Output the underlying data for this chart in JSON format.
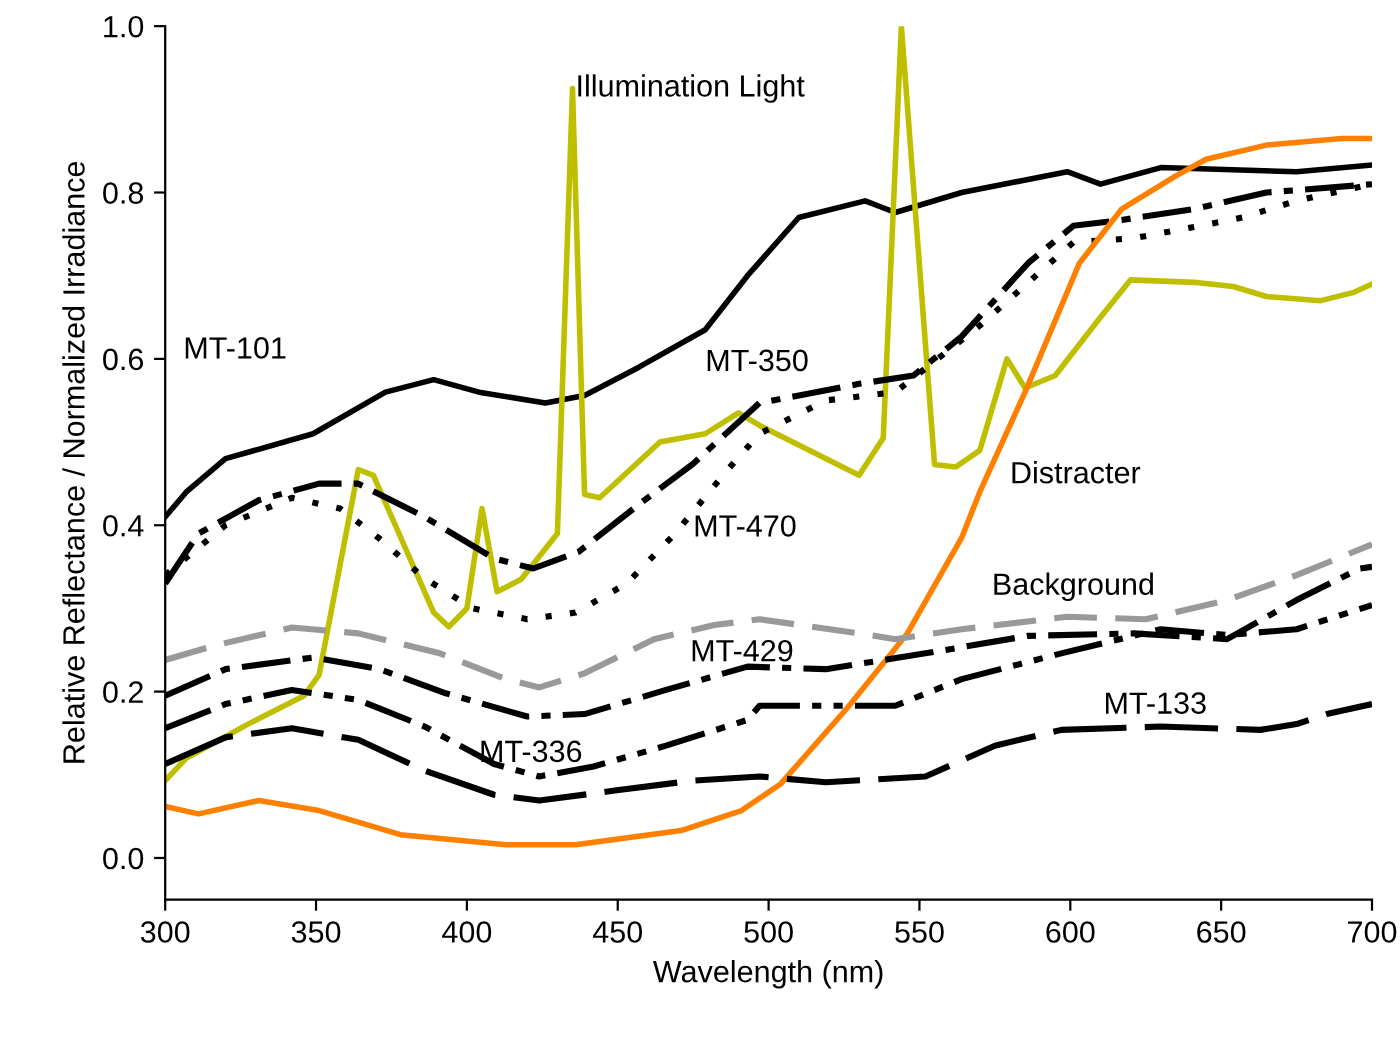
{
  "chart_data": {
    "type": "line",
    "xlabel": "Wavelength (nm)",
    "ylabel": "Relative Reflectance / Normalized Irradiance",
    "xlim": [
      300,
      700
    ],
    "xticks": [
      300,
      350,
      400,
      450,
      500,
      550,
      600,
      650,
      700
    ],
    "ylim": [
      -0.05,
      1.0
    ],
    "yticks": [
      {
        "value": 0,
        "label": "0.0"
      },
      {
        "value": 0.2,
        "label": "0.2"
      },
      {
        "value": 0.4,
        "label": "0.4"
      },
      {
        "value": 0.6,
        "label": "0.6"
      },
      {
        "value": 0.8,
        "label": "0.8"
      },
      {
        "value": 1,
        "label": "1.0"
      }
    ],
    "grid": false,
    "legend": false,
    "marker": "none",
    "series": [
      {
        "name": "MT-101",
        "color": "#000000",
        "line_style": "solid",
        "x": [
          300,
          307,
          320,
          349,
          373,
          389,
          404,
          426,
          439,
          457,
          479,
          493,
          510,
          532,
          542,
          564,
          599,
          610,
          630,
          675,
          700
        ],
        "values": [
          0.41,
          0.44,
          0.48,
          0.51,
          0.56,
          0.575,
          0.56,
          0.547,
          0.556,
          0.59,
          0.635,
          0.7,
          0.77,
          0.79,
          0.776,
          0.8,
          0.825,
          0.81,
          0.83,
          0.825,
          0.833
        ]
      },
      {
        "name": "Illumination Light",
        "color": "#bfbf00",
        "line_style": "solid",
        "x": [
          300,
          307,
          327,
          346,
          351,
          364,
          369,
          389,
          394,
          400,
          405,
          410,
          418,
          430,
          435,
          439,
          444,
          464,
          479,
          490,
          497,
          530,
          538,
          544,
          555,
          562,
          570,
          579,
          585,
          595,
          610,
          620,
          641,
          654,
          665,
          683,
          694,
          700
        ],
        "values": [
          0.093,
          0.12,
          0.16,
          0.195,
          0.22,
          0.467,
          0.46,
          0.295,
          0.278,
          0.3,
          0.42,
          0.32,
          0.335,
          0.39,
          0.925,
          0.437,
          0.433,
          0.5,
          0.51,
          0.535,
          0.52,
          0.46,
          0.505,
          1.0,
          0.473,
          0.47,
          0.49,
          0.6,
          0.565,
          0.58,
          0.65,
          0.695,
          0.692,
          0.687,
          0.675,
          0.67,
          0.68,
          0.69
        ]
      },
      {
        "name": "MT-350",
        "color": "#000000",
        "line_style": "dashdot",
        "x": [
          300,
          311,
          331,
          351,
          364,
          386,
          409,
          422,
          437,
          457,
          475,
          497,
          530,
          548,
          564,
          586,
          601,
          617,
          641,
          665,
          700
        ],
        "values": [
          0.33,
          0.39,
          0.43,
          0.45,
          0.45,
          0.41,
          0.36,
          0.348,
          0.368,
          0.425,
          0.474,
          0.547,
          0.57,
          0.58,
          0.627,
          0.715,
          0.76,
          0.767,
          0.78,
          0.8,
          0.81
        ]
      },
      {
        "name": "MT-470",
        "color": "#000000",
        "line_style": "dotted",
        "x": [
          300,
          320,
          342,
          358,
          371,
          386,
          402,
          420,
          436,
          453,
          469,
          486,
          497,
          519,
          542,
          570,
          601,
          621,
          643,
          657,
          675,
          700
        ],
        "values": [
          0.34,
          0.4,
          0.433,
          0.42,
          0.384,
          0.336,
          0.3,
          0.287,
          0.295,
          0.33,
          0.39,
          0.465,
          0.51,
          0.55,
          0.56,
          0.64,
          0.74,
          0.745,
          0.76,
          0.77,
          0.79,
          0.81
        ]
      },
      {
        "name": "Distracter",
        "color": "#ff8000",
        "line_style": "solid",
        "x": [
          300,
          311,
          331,
          351,
          378,
          413,
          436,
          471,
          491,
          504,
          526,
          546,
          564,
          570,
          585,
          603,
          617,
          635,
          645,
          665,
          690,
          700
        ],
        "values": [
          0.062,
          0.053,
          0.069,
          0.057,
          0.028,
          0.016,
          0.016,
          0.033,
          0.057,
          0.089,
          0.18,
          0.27,
          0.385,
          0.44,
          0.56,
          0.715,
          0.78,
          0.82,
          0.84,
          0.857,
          0.865,
          0.865
        ]
      },
      {
        "name": "Background",
        "color": "#999999",
        "line_style": "dashed",
        "x": [
          300,
          316,
          342,
          364,
          391,
          413,
          424,
          439,
          462,
          482,
          497,
          530,
          542,
          564,
          599,
          625,
          652,
          675,
          700
        ],
        "values": [
          0.238,
          0.255,
          0.277,
          0.27,
          0.246,
          0.215,
          0.205,
          0.222,
          0.263,
          0.28,
          0.287,
          0.27,
          0.263,
          0.275,
          0.29,
          0.287,
          0.31,
          0.34,
          0.377
        ]
      },
      {
        "name": "MT-429",
        "color": "#000000",
        "line_style": "dashdot",
        "x": [
          300,
          320,
          349,
          371,
          393,
          420,
          439,
          466,
          493,
          519,
          552,
          586,
          621,
          652,
          675,
          696,
          700
        ],
        "values": [
          0.195,
          0.227,
          0.241,
          0.227,
          0.198,
          0.17,
          0.173,
          0.202,
          0.23,
          0.227,
          0.246,
          0.267,
          0.27,
          0.263,
          0.31,
          0.348,
          0.35
        ]
      },
      {
        "name": "MT-336",
        "color": "#000000",
        "line_style": "dashdotdot",
        "x": [
          300,
          320,
          342,
          364,
          386,
          409,
          424,
          442,
          466,
          493,
          497,
          542,
          564,
          597,
          630,
          652,
          675,
          700
        ],
        "values": [
          0.156,
          0.185,
          0.202,
          0.19,
          0.158,
          0.113,
          0.098,
          0.11,
          0.135,
          0.166,
          0.183,
          0.183,
          0.215,
          0.246,
          0.275,
          0.268,
          0.275,
          0.304
        ]
      },
      {
        "name": "MT-133",
        "color": "#000000",
        "line_style": "longdash",
        "x": [
          300,
          320,
          342,
          364,
          386,
          409,
          424,
          449,
          475,
          497,
          519,
          552,
          575,
          597,
          630,
          663,
          675,
          685,
          700
        ],
        "values": [
          0.113,
          0.145,
          0.156,
          0.142,
          0.105,
          0.076,
          0.069,
          0.081,
          0.093,
          0.098,
          0.091,
          0.098,
          0.135,
          0.154,
          0.158,
          0.154,
          0.161,
          0.173,
          0.185
        ]
      }
    ]
  }
}
